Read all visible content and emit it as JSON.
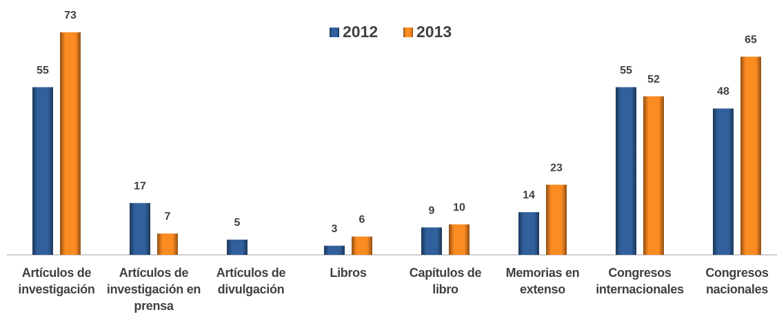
{
  "chart_data": {
    "type": "bar",
    "categories": [
      "Artículos de investigación",
      "Artículos de investigación en prensa",
      "Artículos de divulgación",
      "Libros",
      "Capítulos de libro",
      "Memorias en extenso",
      "Congresos internacionales",
      "Congresos nacionales"
    ],
    "series": [
      {
        "name": "2012",
        "color": "#2f5c95",
        "values": [
          55,
          17,
          5,
          3,
          9,
          14,
          55,
          48
        ]
      },
      {
        "name": "2013",
        "color": "#f0841f",
        "values": [
          73,
          7,
          null,
          6,
          10,
          23,
          52,
          65
        ]
      }
    ],
    "ylim": [
      0,
      75
    ],
    "legend": "top"
  }
}
